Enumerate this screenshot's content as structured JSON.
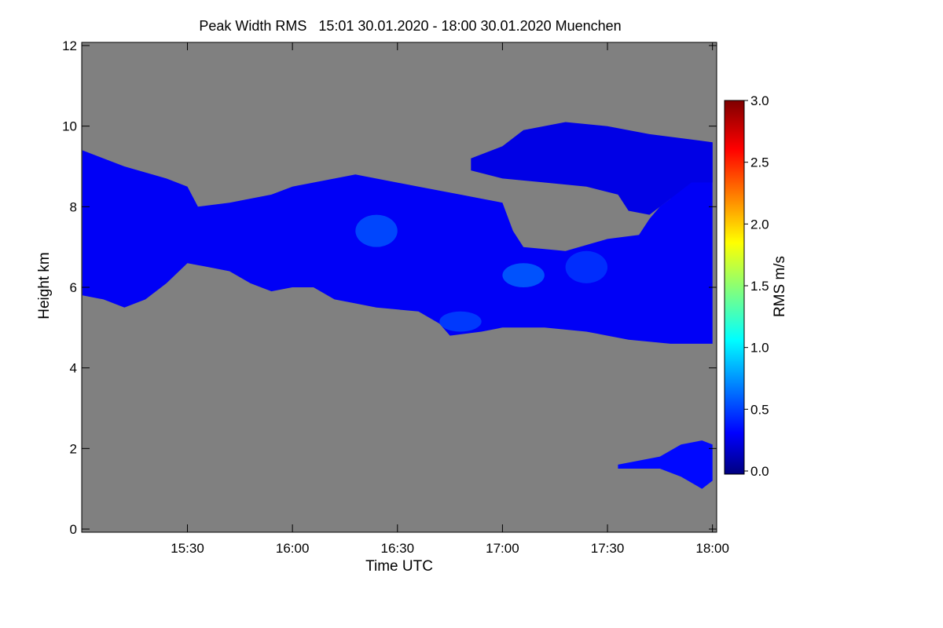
{
  "chart_data": {
    "type": "heatmap",
    "title": "Peak Width RMS   15:01 30.01.2020 - 18:00 30.01.2020 Muenchen",
    "xlabel": "Time UTC",
    "ylabel": "Height km",
    "xlim": [
      "15:01",
      "18:00"
    ],
    "ylim": [
      0,
      12
    ],
    "xticks": [
      "15:30",
      "16:00",
      "16:30",
      "17:00",
      "17:30",
      "18:00"
    ],
    "yticks": [
      "0",
      "2",
      "4",
      "6",
      "8",
      "10",
      "12"
    ],
    "colorbar": {
      "label": "RMS m/s",
      "range": [
        0.0,
        3.0
      ],
      "ticks": [
        "0.0",
        "0.5",
        "1.0",
        "1.5",
        "2.0",
        "2.5",
        "3.0"
      ],
      "colormap": "jet"
    },
    "background_color": "#808080",
    "regions": [
      {
        "name": "main-cloud-layer",
        "level": 0.35,
        "top_km": [
          [
            15.0,
            9.4
          ],
          [
            15.2,
            9.0
          ],
          [
            15.4,
            8.7
          ],
          [
            15.5,
            8.5
          ],
          [
            15.55,
            8.0
          ],
          [
            15.7,
            8.1
          ],
          [
            15.9,
            8.3
          ],
          [
            16.0,
            8.5
          ],
          [
            16.3,
            8.8
          ],
          [
            16.6,
            8.5
          ],
          [
            16.8,
            8.3
          ],
          [
            17.0,
            8.1
          ],
          [
            17.05,
            7.4
          ],
          [
            17.1,
            7.0
          ],
          [
            17.3,
            6.9
          ],
          [
            17.5,
            7.2
          ],
          [
            17.65,
            7.3
          ],
          [
            17.7,
            7.7
          ],
          [
            17.75,
            8.0
          ],
          [
            17.8,
            8.2
          ],
          [
            17.85,
            8.6
          ],
          [
            17.9,
            9.0
          ],
          [
            18.0,
            9.6
          ]
        ],
        "base_km": [
          [
            15.0,
            5.8
          ],
          [
            15.1,
            5.7
          ],
          [
            15.2,
            5.5
          ],
          [
            15.3,
            5.7
          ],
          [
            15.4,
            6.1
          ],
          [
            15.5,
            6.6
          ],
          [
            15.6,
            6.5
          ],
          [
            15.7,
            6.4
          ],
          [
            15.8,
            6.1
          ],
          [
            15.9,
            5.9
          ],
          [
            16.0,
            6.0
          ],
          [
            16.1,
            6.0
          ],
          [
            16.2,
            5.7
          ],
          [
            16.3,
            5.6
          ],
          [
            16.4,
            5.5
          ],
          [
            16.6,
            5.4
          ],
          [
            16.7,
            5.1
          ],
          [
            16.75,
            4.8
          ],
          [
            16.9,
            4.9
          ],
          [
            17.0,
            5.0
          ],
          [
            17.2,
            5.0
          ],
          [
            17.4,
            4.9
          ],
          [
            17.6,
            4.7
          ],
          [
            17.8,
            4.6
          ],
          [
            18.0,
            4.6
          ]
        ]
      },
      {
        "name": "upper-cloud-layer",
        "level": 0.3,
        "top_km": [
          [
            16.85,
            9.2
          ],
          [
            17.0,
            9.5
          ],
          [
            17.1,
            9.9
          ],
          [
            17.3,
            10.1
          ],
          [
            17.5,
            10.0
          ],
          [
            17.7,
            9.8
          ],
          [
            18.0,
            9.6
          ]
        ],
        "base_km": [
          [
            16.85,
            8.9
          ],
          [
            17.0,
            8.7
          ],
          [
            17.2,
            8.6
          ],
          [
            17.4,
            8.5
          ],
          [
            17.55,
            8.3
          ],
          [
            17.6,
            7.9
          ],
          [
            17.7,
            7.8
          ],
          [
            17.8,
            8.2
          ],
          [
            17.9,
            8.6
          ],
          [
            18.0,
            8.6
          ]
        ]
      },
      {
        "name": "boundary-layer-echo",
        "level": 0.4,
        "top_km": [
          [
            17.55,
            1.6
          ],
          [
            17.75,
            1.8
          ],
          [
            17.85,
            2.1
          ],
          [
            17.95,
            2.2
          ],
          [
            18.0,
            2.1
          ]
        ],
        "base_km": [
          [
            17.55,
            1.5
          ],
          [
            17.75,
            1.5
          ],
          [
            17.85,
            1.3
          ],
          [
            17.95,
            1.0
          ],
          [
            18.0,
            1.2
          ]
        ]
      }
    ],
    "enhanced_patches": [
      {
        "t": [
          16.3,
          16.5
        ],
        "h": [
          7.0,
          7.8
        ],
        "level": 0.65
      },
      {
        "t": [
          17.0,
          17.2
        ],
        "h": [
          6.0,
          6.6
        ],
        "level": 0.7
      },
      {
        "t": [
          16.7,
          16.9
        ],
        "h": [
          4.9,
          5.4
        ],
        "level": 0.6
      },
      {
        "t": [
          17.3,
          17.5
        ],
        "h": [
          6.1,
          6.9
        ],
        "level": 0.55
      }
    ]
  }
}
